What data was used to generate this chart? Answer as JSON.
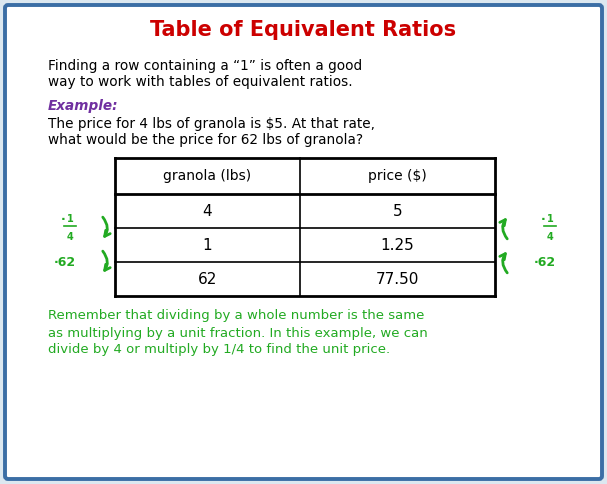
{
  "title": "Table of Equivalent Ratios",
  "title_color": "#cc0000",
  "bg_color": "#dce8f0",
  "border_color": "#3b6ea5",
  "intro_text_line1": "Finding a row containing a “1” is often a good",
  "intro_text_line2": "way to work with tables of equivalent ratios.",
  "example_label": "Example:",
  "example_color": "#7030a0",
  "question_line1": "The price for 4 lbs of granola is $5. At that rate,",
  "question_line2": "what would be the price for 62 lbs of granola?",
  "col1_header": "granola (lbs)",
  "col2_header": "price ($)",
  "table_data": [
    [
      "4",
      "5"
    ],
    [
      "1",
      "1.25"
    ],
    [
      "62",
      "77.50"
    ]
  ],
  "arrow_color": "#22aa22",
  "footer_text_line1": "Remember that dividing by a whole number is the same",
  "footer_text_line2": "as multiplying by a unit fraction. In this example, we can",
  "footer_text_line3": "divide by 4 or multiply by 1/4 to find the unit price.",
  "footer_color": "#22aa22",
  "fig_w": 6.07,
  "fig_h": 4.84,
  "dpi": 100
}
